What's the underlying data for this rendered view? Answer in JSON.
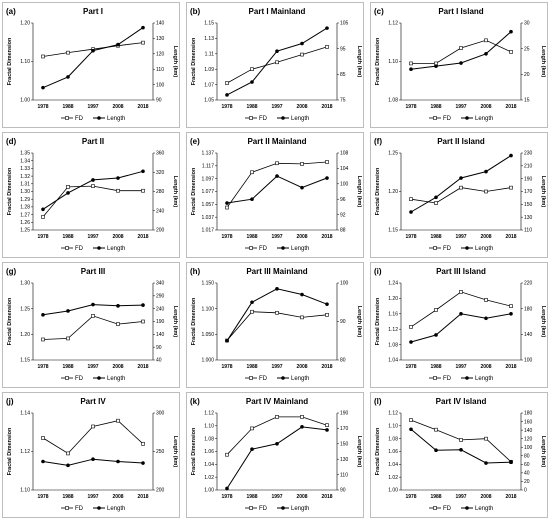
{
  "chart_data": [
    {
      "label": "(a)",
      "title": "Part I",
      "type": "line",
      "categories": [
        "1978",
        "1988",
        "1997",
        "2008",
        "2018"
      ],
      "ylabel": "Fractal Dimension",
      "y2label": "Length (km)",
      "ylim": [
        1.0,
        1.2
      ],
      "yticks": [
        "1.00",
        "1.10",
        "1.20"
      ],
      "y2lim": [
        90,
        140
      ],
      "y2ticks": [
        "90",
        "100",
        "110",
        "120",
        "130",
        "140"
      ],
      "series": [
        {
          "name": "FD",
          "axis": "left",
          "values": [
            1.113,
            1.123,
            1.132,
            1.141,
            1.149
          ]
        },
        {
          "name": "Length",
          "axis": "right",
          "values": [
            98,
            105,
            122,
            126,
            137
          ]
        }
      ]
    },
    {
      "label": "(b)",
      "title": "Part I Mainland",
      "type": "line",
      "categories": [
        "1978",
        "1988",
        "1997",
        "2008",
        "2018"
      ],
      "ylabel": "Fractal Dimension",
      "y2label": "Length (km)",
      "ylim": [
        1.05,
        1.15
      ],
      "yticks": [
        "1.05",
        "1.07",
        "1.09",
        "1.11",
        "1.13",
        "1.15"
      ],
      "y2lim": [
        75,
        105
      ],
      "y2ticks": [
        "75",
        "85",
        "95",
        "105"
      ],
      "series": [
        {
          "name": "FD",
          "axis": "left",
          "values": [
            1.072,
            1.09,
            1.099,
            1.109,
            1.119
          ]
        },
        {
          "name": "Length",
          "axis": "right",
          "values": [
            77,
            82,
            94,
            97,
            103
          ]
        }
      ]
    },
    {
      "label": "(c)",
      "title": "Part I Island",
      "type": "line",
      "categories": [
        "1978",
        "1988",
        "1997",
        "2008",
        "2018"
      ],
      "ylabel": "Fractal Dimension",
      "y2label": "Length (km)",
      "ylim": [
        1.08,
        1.12
      ],
      "yticks": [
        "1.08",
        "1.10",
        "1.12"
      ],
      "y2lim": [
        15,
        30
      ],
      "y2ticks": [
        "15",
        "20",
        "25",
        "30"
      ],
      "series": [
        {
          "name": "FD",
          "axis": "left",
          "values": [
            1.099,
            1.099,
            1.107,
            1.111,
            1.105
          ]
        },
        {
          "name": "Length",
          "axis": "right",
          "values": [
            21,
            21.6,
            22.2,
            24,
            28.3
          ]
        }
      ]
    },
    {
      "label": "(d)",
      "title": "Part II",
      "type": "line",
      "categories": [
        "1978",
        "1988",
        "1997",
        "2008",
        "2018"
      ],
      "ylabel": "Fractal Dimension",
      "y2label": "Length (km)",
      "ylim": [
        1.25,
        1.35
      ],
      "yticks": [
        "1.25",
        "1.26",
        "1.27",
        "1.28",
        "1.29",
        "1.30",
        "1.31",
        "1.32",
        "1.33",
        "1.34",
        "1.35"
      ],
      "y2lim": [
        200,
        360
      ],
      "y2ticks": [
        "200",
        "240",
        "280",
        "320",
        "360"
      ],
      "series": [
        {
          "name": "FD",
          "axis": "left",
          "values": [
            1.267,
            1.306,
            1.307,
            1.301,
            1.301
          ]
        },
        {
          "name": "Length",
          "axis": "right",
          "values": [
            243,
            277,
            304,
            308,
            322
          ]
        }
      ]
    },
    {
      "label": "(e)",
      "title": "Part  II Mainland",
      "type": "line",
      "categories": [
        "1978",
        "1988",
        "1997",
        "2008",
        "2018"
      ],
      "ylabel": "Fractal Dimension",
      "y2label": "Length (km)",
      "ylim": [
        1.017,
        1.137
      ],
      "yticks": [
        "1.017",
        "1.037",
        "1.057",
        "1.077",
        "1.097",
        "1.117",
        "1.137"
      ],
      "y2lim": [
        88,
        108
      ],
      "y2ticks": [
        "88",
        "92",
        "96",
        "100",
        "104",
        "108"
      ],
      "series": [
        {
          "name": "FD",
          "axis": "left",
          "values": [
            1.052,
            1.107,
            1.121,
            1.12,
            1.123
          ]
        },
        {
          "name": "Length",
          "axis": "right",
          "values": [
            95,
            96,
            102,
            99,
            101.5
          ]
        }
      ]
    },
    {
      "label": "(f)",
      "title": "Part II Island",
      "type": "line",
      "categories": [
        "1978",
        "1988",
        "1997",
        "2008",
        "2018"
      ],
      "ylabel": "Fractal Dimension",
      "y2label": "Length (km)",
      "ylim": [
        1.15,
        1.25
      ],
      "yticks": [
        "1.15",
        "1.20",
        "1.25"
      ],
      "y2lim": [
        110,
        230
      ],
      "y2ticks": [
        "110",
        "130",
        "150",
        "170",
        "190",
        "210",
        "230"
      ],
      "series": [
        {
          "name": "FD",
          "axis": "left",
          "values": [
            1.19,
            1.185,
            1.205,
            1.2,
            1.205
          ]
        },
        {
          "name": "Length",
          "axis": "right",
          "values": [
            138,
            161,
            191,
            201,
            226
          ]
        }
      ]
    },
    {
      "label": "(g)",
      "title": "Part III",
      "type": "line",
      "categories": [
        "1978",
        "1988",
        "1997",
        "2008",
        "2018"
      ],
      "ylabel": "Fractal Dimension",
      "y2label": "Length (km)",
      "ylim": [
        1.15,
        1.3
      ],
      "yticks": [
        "1.15",
        "1.20",
        "1.25",
        "1.30"
      ],
      "y2lim": [
        40,
        340
      ],
      "y2ticks": [
        "40",
        "90",
        "140",
        "190",
        "240",
        "290",
        "340"
      ],
      "series": [
        {
          "name": "FD",
          "axis": "left",
          "values": [
            1.19,
            1.192,
            1.236,
            1.22,
            1.225
          ]
        },
        {
          "name": "Length",
          "axis": "right",
          "values": [
            216,
            231,
            256,
            251,
            254
          ]
        }
      ]
    },
    {
      "label": "(h)",
      "title": "Part III Mainland",
      "type": "line",
      "categories": [
        "1978",
        "1988",
        "1997",
        "2008",
        "2018"
      ],
      "ylabel": "Fractal Dimension",
      "y2label": "Length (km)",
      "ylim": [
        1.0,
        1.15
      ],
      "yticks": [
        "1.000",
        "1.050",
        "1.100",
        "1.150"
      ],
      "y2lim": [
        80,
        100
      ],
      "y2ticks": [
        "80",
        "90",
        "100"
      ],
      "series": [
        {
          "name": "FD",
          "axis": "left",
          "values": [
            1.038,
            1.094,
            1.092,
            1.083,
            1.088
          ]
        },
        {
          "name": "Length",
          "axis": "right",
          "values": [
            85,
            95,
            98.5,
            97,
            94.5
          ]
        }
      ]
    },
    {
      "label": "(i)",
      "title": "Part III Island",
      "type": "line",
      "categories": [
        "1978",
        "1988",
        "1997",
        "2008",
        "2018"
      ],
      "ylabel": "Fractal Dimension",
      "y2label": "Length (km)",
      "ylim": [
        1.04,
        1.24
      ],
      "yticks": [
        "1.04",
        "1.08",
        "1.12",
        "1.16",
        "1.20",
        "1.24"
      ],
      "y2lim": [
        100,
        220
      ],
      "y2ticks": [
        "100",
        "140",
        "180",
        "220"
      ],
      "series": [
        {
          "name": "FD",
          "axis": "left",
          "values": [
            1.126,
            1.17,
            1.217,
            1.196,
            1.18
          ]
        },
        {
          "name": "Length",
          "axis": "right",
          "values": [
            128,
            139,
            172,
            165,
            172
          ]
        }
      ]
    },
    {
      "label": "(j)",
      "title": "Part IV",
      "type": "line",
      "categories": [
        "1978",
        "1988",
        "1997",
        "2008",
        "2018"
      ],
      "ylabel": "Fractal Dimension",
      "y2label": "Length (km)",
      "ylim": [
        1.1,
        1.14
      ],
      "yticks": [
        "1.10",
        "1.12",
        "1.14"
      ],
      "y2lim": [
        200,
        300
      ],
      "y2ticks": [
        "200",
        "250",
        "300"
      ],
      "series": [
        {
          "name": "FD",
          "axis": "left",
          "values": [
            1.127,
            1.119,
            1.133,
            1.136,
            1.124
          ]
        },
        {
          "name": "Length",
          "axis": "right",
          "values": [
            237,
            232,
            240,
            237,
            235
          ]
        }
      ]
    },
    {
      "label": "(k)",
      "title": "Part IV Mainland",
      "type": "line",
      "categories": [
        "1978",
        "1988",
        "1997",
        "2008",
        "2018"
      ],
      "ylabel": "Fractal Dimension",
      "y2label": "Length (km)",
      "ylim": [
        1.0,
        1.12
      ],
      "yticks": [
        "1.00",
        "1.02",
        "1.04",
        "1.06",
        "1.08",
        "1.10",
        "1.12"
      ],
      "y2lim": [
        90,
        190
      ],
      "y2ticks": [
        "90",
        "110",
        "130",
        "150",
        "170",
        "190"
      ],
      "series": [
        {
          "name": "FD",
          "axis": "left",
          "values": [
            1.055,
            1.096,
            1.114,
            1.114,
            1.101
          ]
        },
        {
          "name": "Length",
          "axis": "right",
          "values": [
            92,
            143,
            150,
            172,
            168
          ]
        }
      ]
    },
    {
      "label": "(l)",
      "title": "Part IV Island",
      "type": "line",
      "categories": [
        "1978",
        "1988",
        "1997",
        "2008",
        "2018"
      ],
      "ylabel": "Fractal Dimension",
      "y2label": "Length (km)",
      "ylim": [
        1.0,
        1.12
      ],
      "yticks": [
        "1.00",
        "1.02",
        "1.04",
        "1.06",
        "1.08",
        "1.10",
        "1.12"
      ],
      "y2lim": [
        0,
        180
      ],
      "y2ticks": [
        "0",
        "20",
        "40",
        "60",
        "80",
        "100",
        "120",
        "140",
        "160",
        "180"
      ],
      "series": [
        {
          "name": "FD",
          "axis": "left",
          "values": [
            1.109,
            1.094,
            1.078,
            1.08,
            1.044
          ]
        },
        {
          "name": "Length",
          "axis": "right",
          "values": [
            142,
            93,
            94,
            63,
            65
          ]
        }
      ]
    }
  ],
  "legend": {
    "fd_label": "FD",
    "length_label": "Length"
  },
  "colors": {
    "line": "#000000",
    "fd_marker_fill": "#ffffff",
    "length_marker_fill": "#000000"
  }
}
